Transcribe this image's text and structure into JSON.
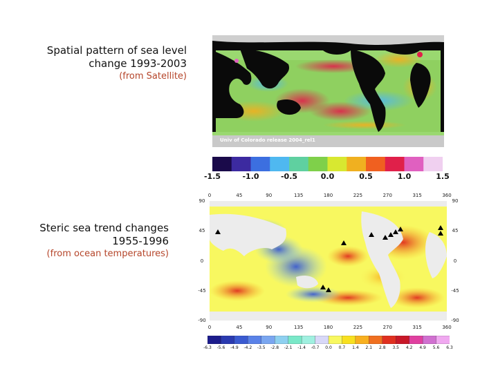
{
  "slide": {
    "top_caption": {
      "title_line1": "Spatial pattern of sea level",
      "title_line2": "change 1993-2003",
      "source": "(from Satellite)"
    },
    "bottom_caption": {
      "title_line1": "Steric sea trend changes",
      "title_line2": "1955-1996",
      "source": "(from ocean temperatures)"
    }
  },
  "satellite_map": {
    "credit": "Univ of Colorado release 2004_rel1",
    "colorbar": {
      "labels": [
        "-1.5",
        "-1.0",
        "-0.5",
        "0.0",
        "0.5",
        "1.0",
        "1.5"
      ],
      "colors": [
        "#1a0a4a",
        "#3c2aa0",
        "#3c6fe0",
        "#4fb8f0",
        "#5fd0a0",
        "#7fd04a",
        "#d8e830",
        "#f0b020",
        "#f06020",
        "#e0204a",
        "#e060c0",
        "#f0d0f0"
      ]
    }
  },
  "steric_map": {
    "top_ticks": [
      "0",
      "45",
      "90",
      "135",
      "180",
      "225",
      "270",
      "315",
      "360"
    ],
    "bottom_ticks": [
      "0",
      "45",
      "90",
      "135",
      "180",
      "225",
      "270",
      "315",
      "360"
    ],
    "left_ticks": [
      "90",
      "45",
      "0",
      "-45",
      "-90"
    ],
    "right_ticks": [
      "90",
      "45",
      "0",
      "-45",
      "-90"
    ],
    "colorbar": {
      "labels": [
        "-6.3",
        "-5.6",
        "-4.9",
        "-4.2",
        "-3.5",
        "-2.8",
        "-2.1",
        "-1.4",
        "-0.7",
        "0.0",
        "0.7",
        "1.4",
        "2.1",
        "2.8",
        "3.5",
        "4.2",
        "4.9",
        "5.6",
        "6.3"
      ],
      "colors": [
        "#1c1c8c",
        "#2a3ab0",
        "#3a5ad0",
        "#5a82e8",
        "#7aa6f0",
        "#8ed0f0",
        "#7ae8c8",
        "#a0f0e0",
        "#d8d8f8",
        "#f8f860",
        "#f8e020",
        "#f8b020",
        "#f07020",
        "#e03020",
        "#c81828",
        "#e040a0",
        "#d070d0",
        "#f0a8f0"
      ]
    }
  }
}
